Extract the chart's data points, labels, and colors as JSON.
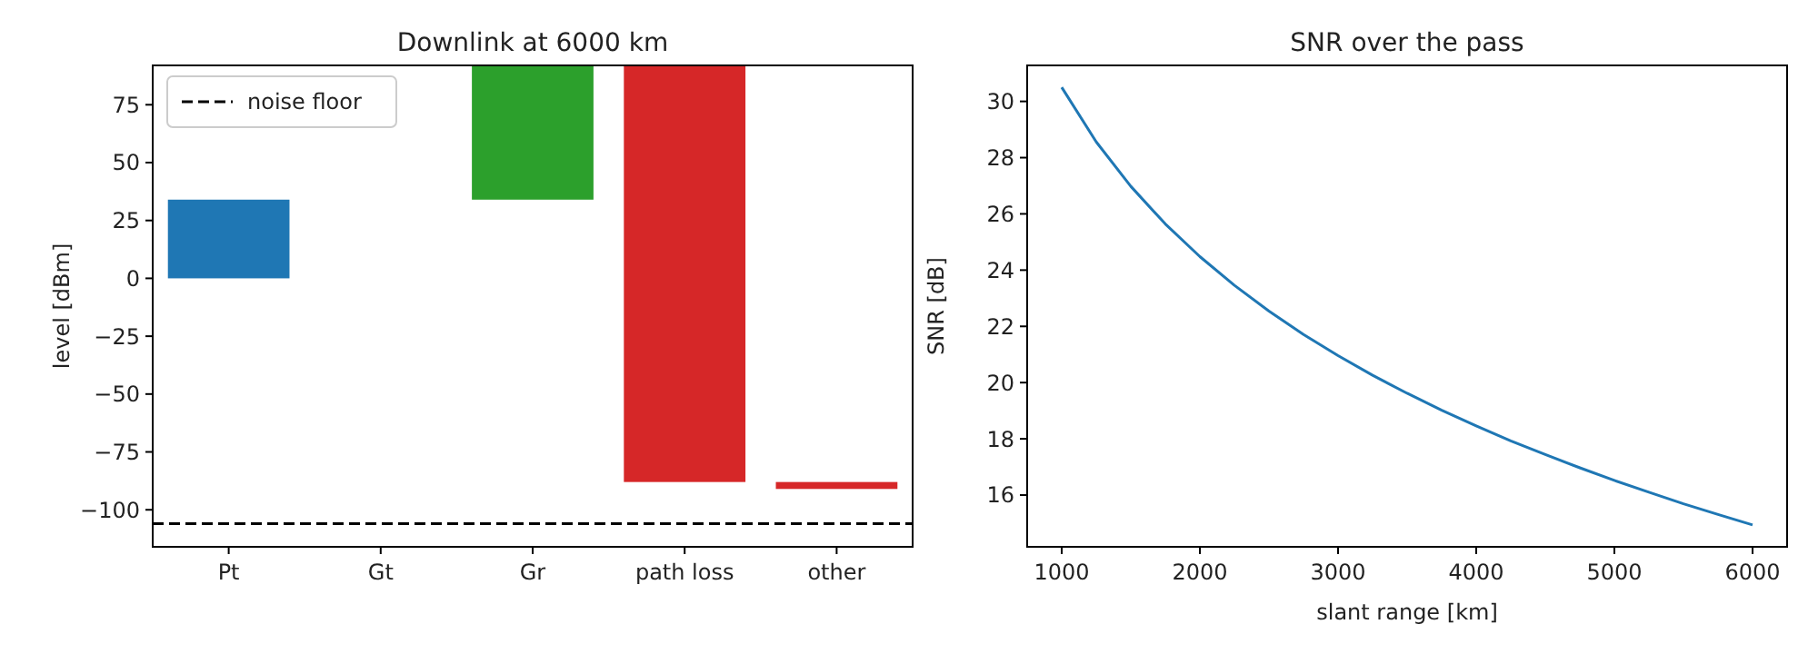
{
  "chart_data": [
    {
      "type": "bar",
      "title": "Downlink at 6000 km",
      "ylabel": "level [dBm]",
      "categories": [
        "Pt",
        "Gt",
        "Gr",
        "path loss",
        "other"
      ],
      "values": [
        34,
        null,
        58,
        -180,
        -3
      ],
      "base": [
        0,
        null,
        34,
        92,
        -88
      ],
      "colors": [
        "#1f77b4",
        null,
        "#2ca02c",
        "#d62728",
        "#d62728"
      ],
      "ylim": [
        -116,
        92
      ],
      "yticks": [
        {
          "value": -100,
          "label": "−100"
        },
        {
          "value": -75,
          "label": "−75"
        },
        {
          "value": -50,
          "label": "−50"
        },
        {
          "value": -25,
          "label": "−25"
        },
        0,
        25,
        50,
        75
      ],
      "ref_lines": [
        {
          "axis": "y",
          "value": -106,
          "label": "noise floor",
          "color": "#000000",
          "line_style": "dashed"
        }
      ],
      "legend": "top left"
    },
    {
      "type": "line",
      "title": "SNR over the pass",
      "xlabel": "slant range [km]",
      "ylabel": "SNR [dB]",
      "x": [
        1000,
        1250,
        1500,
        1750,
        2000,
        2250,
        2500,
        2750,
        3000,
        3250,
        3500,
        3750,
        4000,
        4250,
        4500,
        4750,
        5000,
        5250,
        5500,
        5750,
        6000
      ],
      "series": [
        {
          "color": "#1f77b4",
          "values": [
            30.5,
            28.56,
            26.98,
            25.64,
            24.48,
            23.46,
            22.54,
            21.71,
            20.96,
            20.26,
            19.62,
            19.02,
            18.46,
            17.93,
            17.44,
            16.97,
            16.52,
            16.1,
            15.69,
            15.31,
            14.94
          ]
        }
      ],
      "xlim": [
        750,
        6250
      ],
      "xticks": [
        1000,
        2000,
        3000,
        4000,
        5000,
        6000
      ],
      "ylim": [
        14.16,
        31.28
      ],
      "yticks": [
        16,
        18,
        20,
        22,
        24,
        26,
        28,
        30
      ]
    }
  ]
}
